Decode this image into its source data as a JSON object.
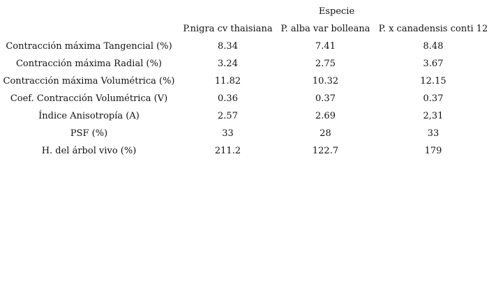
{
  "table": {
    "group_header": "Especie",
    "columns": [
      "P.nigra cv thaisiana",
      "P. alba var bolleana",
      "P. x canadensis conti 12"
    ],
    "rows": [
      {
        "label": "Contracción máxima Tangencial (%)",
        "values": [
          "8.34",
          "7.41",
          "8.48"
        ]
      },
      {
        "label": "Contracción máxima Radial (%)",
        "values": [
          "3.24",
          "2.75",
          "3.67"
        ]
      },
      {
        "label": "Contracción máxima Volumétrica (%)",
        "values": [
          "11.82",
          "10.32",
          "12.15"
        ]
      },
      {
        "label": "Coef. Contracción Volumétrica (V)",
        "values": [
          "0.36",
          "0.37",
          "0.37"
        ]
      },
      {
        "label": "Índice Anisotropía (A)",
        "values": [
          "2.57",
          "2.69",
          "2,31"
        ]
      },
      {
        "label": "PSF (%)",
        "values": [
          "33",
          "28",
          "33"
        ]
      },
      {
        "label": "H. del árbol vivo (%)",
        "values": [
          "211.2",
          "122.7",
          "179"
        ]
      }
    ]
  }
}
